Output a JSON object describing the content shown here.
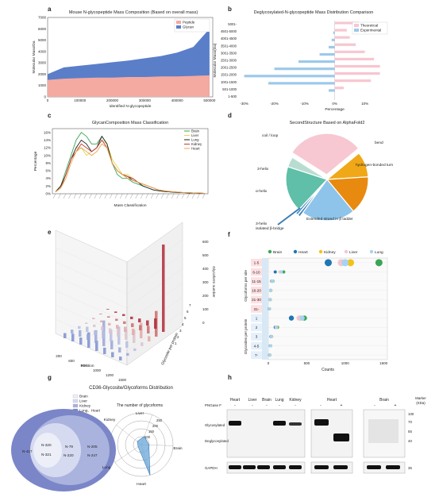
{
  "panel_letters": [
    "a",
    "b",
    "c",
    "d",
    "e",
    "f",
    "g",
    "h"
  ],
  "chart_data": [
    {
      "panel": "a",
      "type": "area",
      "title": "Mouse N-glycopeptide Mass Composition (Based on overall mass)",
      "xlabel": "Identified N-glycopeptide",
      "ylabel": "Molecular Mass/Da",
      "xticks": [
        "0",
        "100000",
        "200000",
        "300000",
        "400000",
        "500000"
      ],
      "yticks": [
        "0",
        "1000",
        "2000",
        "3000",
        "4000",
        "5000",
        "6000",
        "7000"
      ],
      "xlim": [
        0,
        510000
      ],
      "ylim": [
        0,
        7000
      ],
      "series": [
        {
          "name": "Peptide",
          "color": "#f4a9a1",
          "x": [
            0,
            50000,
            100000,
            150000,
            200000,
            250000,
            300000,
            350000,
            400000,
            450000,
            500000
          ],
          "values": [
            1500,
            1600,
            1650,
            1700,
            1700,
            1750,
            1750,
            1800,
            1800,
            1850,
            1900
          ]
        },
        {
          "name": "Glycan",
          "color": "#5b7ec9",
          "x": [
            0,
            50000,
            100000,
            150000,
            200000,
            250000,
            300000,
            350000,
            400000,
            450000,
            500000
          ],
          "values": [
            2000,
            2600,
            2750,
            2900,
            3050,
            3200,
            3400,
            3600,
            3900,
            4400,
            6000
          ]
        }
      ]
    },
    {
      "panel": "b",
      "type": "bar",
      "title": "Deglycosylated-N-glycopeptide Mass Distribution Comparison",
      "xlabel": "Percentage",
      "ylabel": "Molecular Mass(Da)",
      "categories": [
        "1-500",
        "501-1000",
        "1001-1500",
        "1501-2000",
        "2001-2500",
        "2501-3000",
        "3001-3500",
        "3501-4000",
        "4001-4500",
        "4501-5000",
        "5001-"
      ],
      "xticks": [
        "-30%",
        "-20%",
        "-10%",
        "0%",
        "10%"
      ],
      "xlim": [
        -32,
        18
      ],
      "series": [
        {
          "name": "Theoretical",
          "color": "#f7c6d0",
          "values": [
            0,
            3,
            12,
            15,
            15,
            13,
            10,
            7,
            5,
            4,
            8
          ]
        },
        {
          "name": "Experimental",
          "color": "#9cc9ea",
          "values": [
            0,
            -2,
            -22,
            -30,
            -20,
            -12,
            -5,
            -2,
            -1,
            -0.5,
            0
          ]
        }
      ]
    },
    {
      "panel": "c",
      "type": "line",
      "title": "GlycanComposition Mass Classification",
      "xlabel": "Mass Classification",
      "ylabel": "Percentage",
      "yticks": [
        "0%",
        "2%",
        "4%",
        "6%",
        "8%",
        "10%",
        "12%",
        "14%",
        "16%"
      ],
      "ylim": [
        0,
        17
      ],
      "x": [
        1,
        2,
        3,
        4,
        5,
        6,
        7,
        8,
        9,
        10,
        11,
        12,
        13,
        14,
        15,
        16,
        17,
        18,
        19,
        20,
        21,
        22,
        23,
        24,
        25,
        26,
        27,
        28,
        29,
        30
      ],
      "series": [
        {
          "name": "Brain",
          "color": "#3aa655",
          "values": [
            0.5,
            2,
            6,
            10,
            14,
            16,
            15,
            13,
            13,
            15,
            13,
            8,
            5,
            4,
            4,
            3,
            2.5,
            2,
            1.5,
            1,
            0.8,
            0.6,
            0.5,
            0.4,
            0.3,
            0.3,
            0.2,
            0.2,
            0.1,
            0.1
          ]
        },
        {
          "name": "Liver",
          "color": "#e8d44d",
          "values": [
            0.5,
            1.5,
            5,
            9,
            12,
            12,
            10,
            11,
            12,
            14,
            13,
            9,
            7,
            5,
            5,
            4,
            3,
            2.5,
            2,
            1.5,
            1,
            0.8,
            0.6,
            0.5,
            0.4,
            0.3,
            0.3,
            0.2,
            0.2,
            0.1
          ]
        },
        {
          "name": "Lung",
          "color": "#222222",
          "values": [
            0.5,
            2,
            5,
            9,
            12,
            14,
            13,
            11,
            12,
            15,
            13,
            8,
            6,
            5,
            4.5,
            3.5,
            3,
            2,
            1.5,
            1,
            0.8,
            0.6,
            0.5,
            0.4,
            0.3,
            0.3,
            0.2,
            0.2,
            0.1,
            0.1
          ]
        },
        {
          "name": "Kidney",
          "color": "#c23b3b",
          "values": [
            0.5,
            1.5,
            5,
            9,
            11,
            13,
            12,
            11,
            12,
            14,
            12,
            8,
            6,
            5,
            4.5,
            4,
            3,
            2.5,
            2,
            1.5,
            1,
            0.8,
            0.6,
            0.5,
            0.4,
            0.3,
            0.3,
            0.2,
            0.2,
            0.1
          ]
        },
        {
          "name": "Heart",
          "color": "#e8a44d",
          "values": [
            0.5,
            1.5,
            4,
            8,
            11,
            12,
            11,
            10,
            11,
            13,
            12,
            8,
            6,
            5,
            4,
            3.5,
            3,
            2.5,
            2,
            1.5,
            1,
            0.8,
            0.6,
            0.5,
            0.4,
            0.3,
            0.3,
            0.2,
            0.2,
            0.1
          ]
        }
      ]
    },
    {
      "panel": "d",
      "type": "pie",
      "title": "SecondStructure Based on AlphaFold2",
      "labels": [
        "coil / loop",
        "bend",
        "hydrogen-bonded turn",
        "Extended strand in β ladder",
        "3-helix",
        "isolated β-bridge",
        "α-helix",
        "3-helix"
      ],
      "values": [
        30,
        10,
        15,
        21,
        1,
        1,
        18,
        4
      ],
      "colors": [
        "#f7c8d2",
        "#f0a818",
        "#e88a10",
        "#8ec4ea",
        "#3d7db5",
        "#4a92c8",
        "#5fbfa8",
        "#b8ddd0"
      ]
    },
    {
      "panel": "e",
      "type": "bar",
      "title": "",
      "xlabel": "Position",
      "ylabel": "Glycosite per protein",
      "zlabel": "Glycoform number",
      "xticks": [
        "200",
        "600",
        "800",
        "1000",
        "1200",
        "1500"
      ],
      "yticks": [
        "1",
        "2",
        "3",
        "4",
        "5",
        "6",
        "7"
      ],
      "zticks": [
        "0",
        "100",
        "200",
        "300",
        "400",
        "500",
        "600"
      ],
      "series": [
        {
          "name": "1",
          "color": "#7a8fd0",
          "values": [
            40,
            60,
            55,
            120,
            80,
            50,
            40,
            30
          ]
        },
        {
          "name": "2",
          "color": "#9aa6d8",
          "values": [
            30,
            50,
            45,
            100,
            200,
            70,
            40,
            20
          ]
        },
        {
          "name": "3",
          "color": "#b7bde0",
          "values": [
            20,
            40,
            35,
            60,
            90,
            140,
            50,
            20
          ]
        },
        {
          "name": "4",
          "color": "#d9c4cc",
          "values": [
            10,
            20,
            30,
            40,
            60,
            80,
            100,
            30
          ]
        },
        {
          "name": "5",
          "color": "#e6a8a8",
          "values": [
            10,
            15,
            20,
            30,
            40,
            50,
            120,
            40
          ]
        },
        {
          "name": "6",
          "color": "#cc6b6b",
          "values": [
            5,
            10,
            15,
            20,
            30,
            40,
            60,
            200
          ]
        },
        {
          "name": "7",
          "color": "#b02a38",
          "values": [
            5,
            10,
            15,
            20,
            30,
            40,
            80,
            680
          ]
        }
      ]
    },
    {
      "panel": "f",
      "type": "scatter",
      "title": "",
      "xlabel": "Counts",
      "group_labels": [
        "Glycoforms per site",
        "Glycosites per protein"
      ],
      "categories": [
        "1-5",
        "6-10",
        "11-15",
        "16-20",
        "21-30",
        "31-",
        "1",
        "2",
        "3",
        "4-5",
        "7-"
      ],
      "xticks": [
        "0",
        "500",
        "1000",
        "1500"
      ],
      "xlim": [
        0,
        1550
      ],
      "series": [
        {
          "name": "Brain",
          "color": "#3aa655",
          "values": [
            1440,
            200,
            60,
            30,
            25,
            15,
            470,
            120,
            40,
            30,
            20
          ]
        },
        {
          "name": "Heart",
          "color": "#1f77b4",
          "values": [
            780,
            90,
            45,
            30,
            20,
            10,
            300,
            90,
            35,
            25,
            15
          ]
        },
        {
          "name": "Kidney",
          "color": "#f2c318",
          "values": [
            1070,
            160,
            55,
            35,
            25,
            15,
            420,
            110,
            45,
            30,
            20
          ]
        },
        {
          "name": "Liver",
          "color": "#f6c5cf",
          "values": [
            950,
            150,
            50,
            30,
            20,
            12,
            400,
            100,
            40,
            28,
            18
          ]
        },
        {
          "name": "Lung",
          "color": "#a6d3f0",
          "values": [
            1000,
            170,
            55,
            32,
            22,
            14,
            440,
            105,
            42,
            29,
            19
          ]
        }
      ]
    },
    {
      "panel": "g",
      "type": "pie",
      "title": "CD36-Glycosite/Glycoforms Distribution",
      "subtitle": "The number of glycoforms",
      "legend": [
        "Brain",
        "Liver",
        "Kidney",
        "Lung、Heart"
      ],
      "venn_labels": [
        "N-417",
        "N-320",
        "N-321",
        "N-79",
        "N-220",
        "N-205",
        "N-247"
      ],
      "radar_labels": [
        "Liver",
        "Brain",
        "Heart",
        "Lung",
        "Kidney"
      ],
      "radar_ticks": [
        "100",
        "150",
        "200",
        "250"
      ],
      "values": [
        70,
        60,
        250,
        30,
        40
      ]
    }
  ],
  "blot": {
    "panel": "h",
    "groups_left": [
      "Heart",
      "Liver",
      "Brain",
      "Lung",
      "Kidney"
    ],
    "groups_mid": [
      "Heart"
    ],
    "groups_right": [
      "Brain"
    ],
    "marker_label": "Marker (KDa)",
    "row_label": "PNGase F",
    "signs_left": [
      "-",
      "-",
      "-",
      "-",
      "-"
    ],
    "signs_mid": [
      "-",
      "+"
    ],
    "signs_right": [
      "-",
      "+"
    ],
    "band_labels": [
      "Glycosylated",
      "Deglycosylated",
      "GAPDH"
    ],
    "marker_ticks": [
      "100",
      "70",
      "55",
      "40",
      "35"
    ]
  }
}
